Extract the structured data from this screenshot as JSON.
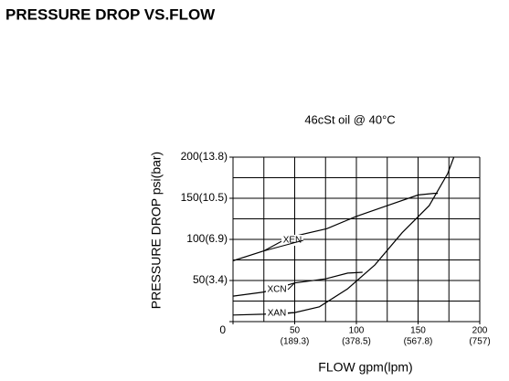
{
  "chart_data": {
    "type": "line",
    "title": "PRESSURE DROP VS.FLOW",
    "subtitle": "46cSt oil @ 40°C",
    "xlabel": "FLOW gpm(lpm)",
    "ylabel": "PRESSURE DROP psi(bar)",
    "xlim": [
      0,
      200
    ],
    "ylim": [
      0,
      200
    ],
    "xticks": [
      0,
      50,
      100,
      150,
      200
    ],
    "x_secondary_labels": [
      null,
      "(189.3)",
      "(378.5)",
      "(567.8)",
      "(757)"
    ],
    "yticks": [
      0,
      {
        "value": 50,
        "label": "50(3.4)"
      },
      {
        "value": 100,
        "label": "100(6.9)"
      },
      {
        "value": 150,
        "label": "150(10.5)"
      },
      {
        "value": 200,
        "label": "200(13.8)"
      }
    ],
    "grid_step": 25,
    "grid": true,
    "series": [
      {
        "name": "XEN",
        "color": "#000000",
        "x": [
          0,
          25,
          41,
          50,
          76,
          100,
          125,
          150,
          163,
          166
        ],
        "values": [
          74,
          86,
          99,
          104,
          113,
          128,
          141,
          154,
          156,
          156
        ]
      },
      {
        "name": "XCN",
        "color": "#000000",
        "x": [
          0,
          25,
          50,
          75,
          93,
          105
        ],
        "values": [
          31,
          36,
          47,
          52,
          59,
          60
        ]
      },
      {
        "name": "XAN",
        "color": "#000000",
        "x": [
          0,
          25,
          50,
          70,
          93,
          115,
          137,
          159,
          174,
          179
        ],
        "values": [
          8,
          9,
          11,
          18,
          40,
          69,
          108,
          141,
          180,
          200
        ]
      }
    ]
  }
}
